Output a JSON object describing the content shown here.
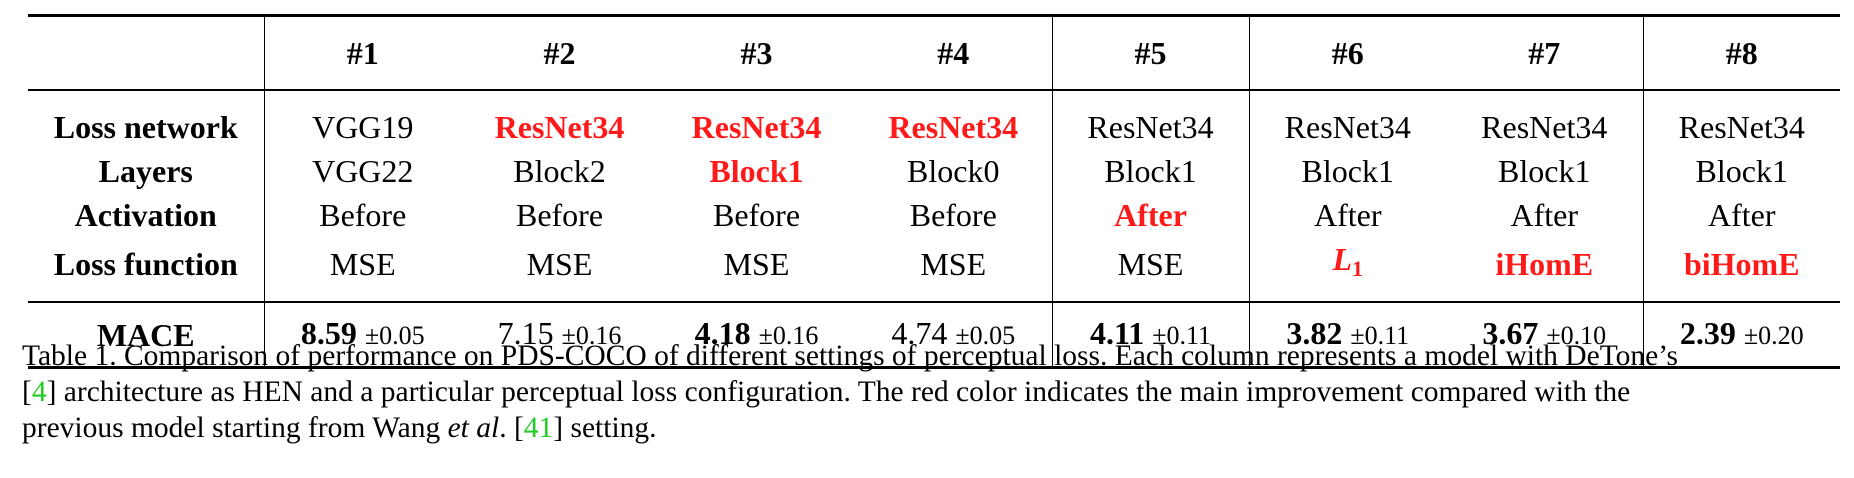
{
  "table": {
    "headers": [
      "#1",
      "#2",
      "#3",
      "#4",
      "#5",
      "#6",
      "#7",
      "#8"
    ],
    "rows": [
      {
        "label": "Loss network",
        "cells": [
          {
            "text": "VGG19",
            "red": false
          },
          {
            "text": "ResNet34",
            "red": true
          },
          {
            "text": "ResNet34",
            "red": true
          },
          {
            "text": "ResNet34",
            "red": true
          },
          {
            "text": "ResNet34",
            "red": false
          },
          {
            "text": "ResNet34",
            "red": false
          },
          {
            "text": "ResNet34",
            "red": false
          },
          {
            "text": "ResNet34",
            "red": false
          }
        ]
      },
      {
        "label": "Layers",
        "cells": [
          {
            "text": "VGG22",
            "red": false
          },
          {
            "text": "Block2",
            "red": false
          },
          {
            "text": "Block1",
            "red": true
          },
          {
            "text": "Block0",
            "red": false
          },
          {
            "text": "Block1",
            "red": false
          },
          {
            "text": "Block1",
            "red": false
          },
          {
            "text": "Block1",
            "red": false
          },
          {
            "text": "Block1",
            "red": false
          }
        ]
      },
      {
        "label": "Activation",
        "cells": [
          {
            "text": "Before",
            "red": false
          },
          {
            "text": "Before",
            "red": false
          },
          {
            "text": "Before",
            "red": false
          },
          {
            "text": "Before",
            "red": false
          },
          {
            "text": "After",
            "red": true
          },
          {
            "text": "After",
            "red": false
          },
          {
            "text": "After",
            "red": false
          },
          {
            "text": "After",
            "red": false
          }
        ]
      },
      {
        "label": "Loss function",
        "cells": [
          {
            "text": "MSE",
            "red": false
          },
          {
            "text": "MSE",
            "red": false
          },
          {
            "text": "MSE",
            "red": false
          },
          {
            "text": "MSE",
            "red": false
          },
          {
            "text": "MSE",
            "red": false
          },
          {
            "text": "L",
            "sub": "1",
            "red": true,
            "italic": true
          },
          {
            "text": "iHomE",
            "red": true
          },
          {
            "text": "biHomE",
            "red": true
          }
        ]
      }
    ],
    "mace": {
      "label": "MACE",
      "cells": [
        {
          "value": "8.59",
          "std": "±0.05",
          "bold": true
        },
        {
          "value": "7.15",
          "std": "±0.16",
          "bold": false
        },
        {
          "value": "4.18",
          "std": "±0.16",
          "bold": true
        },
        {
          "value": "4.74",
          "std": "±0.05",
          "bold": false
        },
        {
          "value": "4.11",
          "std": "±0.11",
          "bold": true
        },
        {
          "value": "3.82",
          "std": "±0.11",
          "bold": true
        },
        {
          "value": "3.67",
          "std": "±0.10",
          "bold": true
        },
        {
          "value": "2.39",
          "std": "±0.20",
          "bold": true
        }
      ]
    }
  },
  "caption": {
    "line1": "Table 1. Comparison of performance on PDS-COCO of different settings of perceptual loss. Each column represents a model with DeTone’s",
    "line2_open": "[",
    "line2_ref": "4",
    "line2_rest": "] architecture as HEN and a particular perceptual loss configuration. The red color indicates the main improvement compared with the",
    "line3_a": "previous model starting from Wang ",
    "line3_etal": "et al",
    "line3_b": ". [",
    "line3_ref": "41",
    "line3_c": "] setting."
  }
}
